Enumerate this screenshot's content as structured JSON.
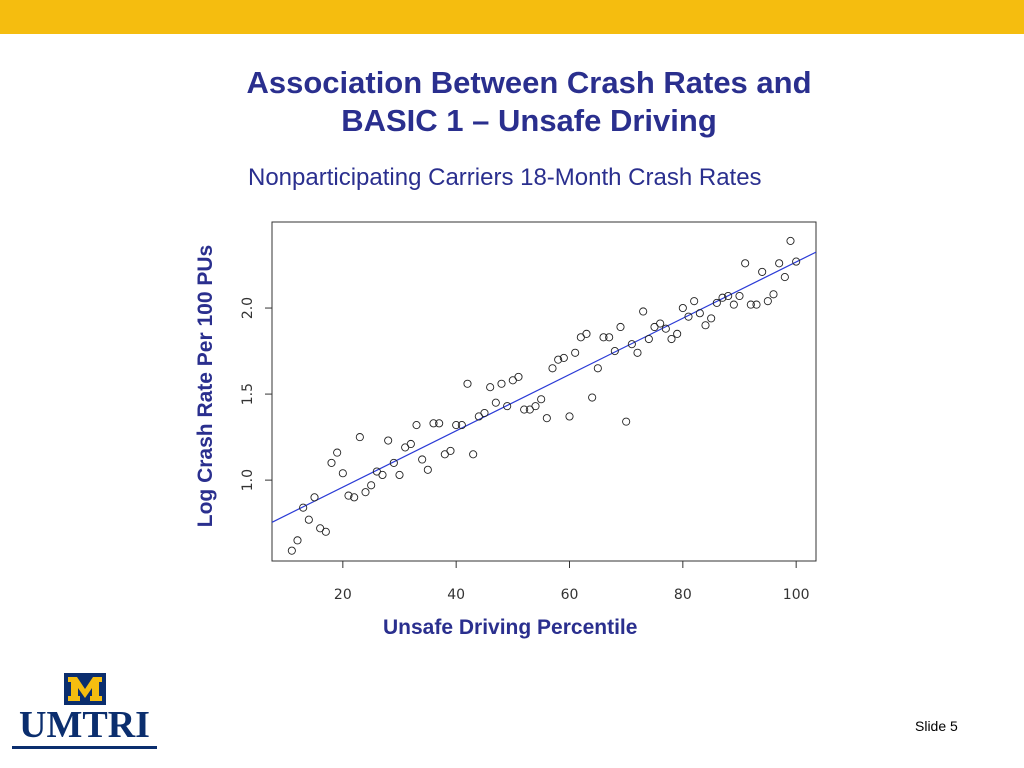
{
  "slide": {
    "title_line1": "Association Between Crash Rates and",
    "title_line2": "BASIC 1 – Unsafe Driving",
    "subtitle": "Nonparticipating Carriers 18-Month Crash Rates",
    "slide_number": "Slide 5"
  },
  "logo": {
    "text": "UMTRI",
    "block_letter": "M"
  },
  "colors": {
    "top_bar": "#f5bd0f",
    "title": "#2a2f8e",
    "fit_line": "#2b3bd6",
    "logo_blue": "#0b2e6e",
    "logo_maize": "#f5bd0f"
  },
  "chart_data": {
    "type": "scatter",
    "xlabel": "Unsafe Driving Percentile",
    "ylabel": "Log Crash Rate Per 100 PUs",
    "xlim": [
      7.5,
      103.5
    ],
    "ylim": [
      0.53,
      2.5
    ],
    "xticks": [
      "20",
      "40",
      "60",
      "80",
      "100"
    ],
    "yticks": [
      "1.0",
      "1.5",
      "2.0"
    ],
    "xtick_values": [
      20,
      40,
      60,
      80,
      100
    ],
    "ytick_values": [
      1.0,
      1.5,
      2.0
    ],
    "fit_line": {
      "x": [
        7.5,
        103.5
      ],
      "y": [
        0.755,
        2.325
      ]
    },
    "points": [
      [
        11,
        0.59
      ],
      [
        12,
        0.65
      ],
      [
        13,
        0.84
      ],
      [
        14,
        0.77
      ],
      [
        15,
        0.9
      ],
      [
        16,
        0.72
      ],
      [
        17,
        0.7
      ],
      [
        18,
        1.1
      ],
      [
        19,
        1.16
      ],
      [
        20,
        1.04
      ],
      [
        21,
        0.91
      ],
      [
        22,
        0.9
      ],
      [
        23,
        1.25
      ],
      [
        24,
        0.93
      ],
      [
        25,
        0.97
      ],
      [
        26,
        1.05
      ],
      [
        27,
        1.03
      ],
      [
        28,
        1.23
      ],
      [
        29,
        1.1
      ],
      [
        30,
        1.03
      ],
      [
        31,
        1.19
      ],
      [
        32,
        1.21
      ],
      [
        33,
        1.32
      ],
      [
        34,
        1.12
      ],
      [
        35,
        1.06
      ],
      [
        36,
        1.33
      ],
      [
        37,
        1.33
      ],
      [
        38,
        1.15
      ],
      [
        39,
        1.17
      ],
      [
        40,
        1.32
      ],
      [
        41,
        1.32
      ],
      [
        42,
        1.56
      ],
      [
        43,
        1.15
      ],
      [
        44,
        1.37
      ],
      [
        45,
        1.39
      ],
      [
        46,
        1.54
      ],
      [
        47,
        1.45
      ],
      [
        48,
        1.56
      ],
      [
        49,
        1.43
      ],
      [
        50,
        1.58
      ],
      [
        51,
        1.6
      ],
      [
        52,
        1.41
      ],
      [
        53,
        1.41
      ],
      [
        54,
        1.43
      ],
      [
        55,
        1.47
      ],
      [
        56,
        1.36
      ],
      [
        57,
        1.65
      ],
      [
        58,
        1.7
      ],
      [
        59,
        1.71
      ],
      [
        60,
        1.37
      ],
      [
        61,
        1.74
      ],
      [
        62,
        1.83
      ],
      [
        63,
        1.85
      ],
      [
        64,
        1.48
      ],
      [
        65,
        1.65
      ],
      [
        66,
        1.83
      ],
      [
        67,
        1.83
      ],
      [
        68,
        1.75
      ],
      [
        69,
        1.89
      ],
      [
        70,
        1.34
      ],
      [
        71,
        1.79
      ],
      [
        72,
        1.74
      ],
      [
        73,
        1.98
      ],
      [
        74,
        1.82
      ],
      [
        75,
        1.89
      ],
      [
        76,
        1.91
      ],
      [
        77,
        1.88
      ],
      [
        78,
        1.82
      ],
      [
        79,
        1.85
      ],
      [
        80,
        2.0
      ],
      [
        81,
        1.95
      ],
      [
        82,
        2.04
      ],
      [
        83,
        1.97
      ],
      [
        84,
        1.9
      ],
      [
        85,
        1.94
      ],
      [
        86,
        2.03
      ],
      [
        87,
        2.06
      ],
      [
        88,
        2.07
      ],
      [
        89,
        2.02
      ],
      [
        90,
        2.07
      ],
      [
        91,
        2.26
      ],
      [
        92,
        2.02
      ],
      [
        93,
        2.02
      ],
      [
        94,
        2.21
      ],
      [
        95,
        2.04
      ],
      [
        96,
        2.08
      ],
      [
        97,
        2.26
      ],
      [
        98,
        2.18
      ],
      [
        99,
        2.39
      ],
      [
        100,
        2.27
      ]
    ],
    "marker": "open-circle",
    "grid": false,
    "legend": false
  }
}
